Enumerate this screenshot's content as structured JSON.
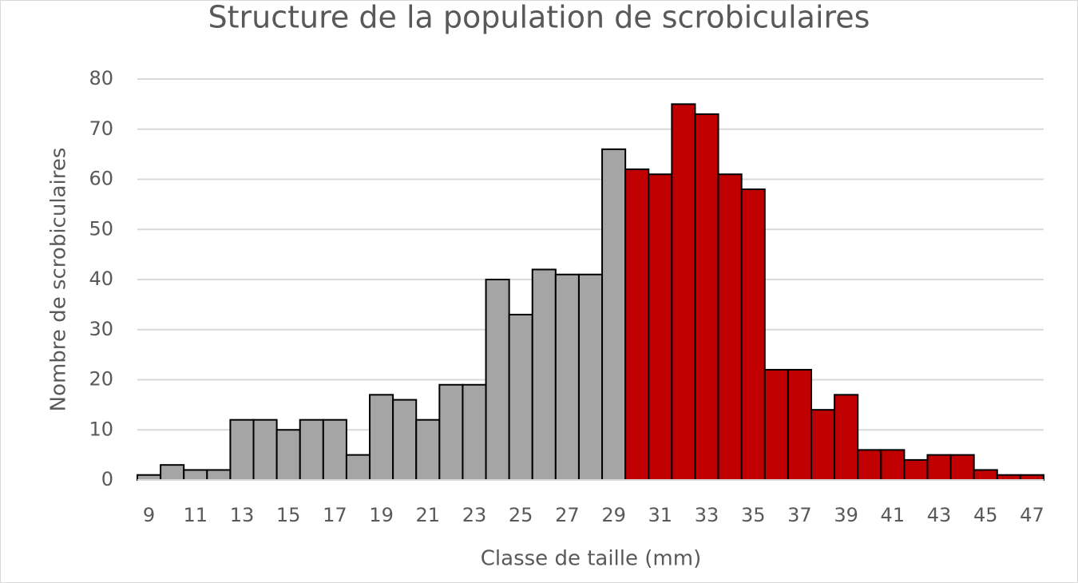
{
  "chart_data": {
    "type": "bar",
    "title": "Structure de la population de scrobiculaires",
    "x_label": "Classe de taille (mm)",
    "y_label": "Nombre de scrobiculaires",
    "categories": [
      9,
      null,
      11,
      null,
      13,
      null,
      15,
      null,
      17,
      null,
      19,
      null,
      21,
      null,
      23,
      null,
      25,
      null,
      27,
      null,
      29,
      null,
      31,
      null,
      33,
      null,
      35,
      null,
      37,
      null,
      39,
      null,
      41,
      null,
      43,
      null,
      45,
      null,
      47
    ],
    "values": [
      1,
      3,
      2,
      2,
      12,
      12,
      10,
      12,
      12,
      5,
      17,
      16,
      12,
      19,
      19,
      40,
      33,
      42,
      41,
      41,
      66,
      62,
      61,
      75,
      73,
      61,
      58,
      22,
      22,
      14,
      17,
      6,
      6,
      4,
      5,
      5,
      2,
      1,
      1
    ],
    "colors": [
      "#a5a5a5",
      "#a5a5a5",
      "#a5a5a5",
      "#a5a5a5",
      "#a5a5a5",
      "#a5a5a5",
      "#a5a5a5",
      "#a5a5a5",
      "#a5a5a5",
      "#a5a5a5",
      "#a5a5a5",
      "#a5a5a5",
      "#a5a5a5",
      "#a5a5a5",
      "#a5a5a5",
      "#a5a5a5",
      "#a5a5a5",
      "#a5a5a5",
      "#a5a5a5",
      "#a5a5a5",
      "#a5a5a5",
      "#c00000",
      "#c00000",
      "#c00000",
      "#c00000",
      "#c00000",
      "#c00000",
      "#c00000",
      "#c00000",
      "#c00000",
      "#c00000",
      "#c00000",
      "#c00000",
      "#c00000",
      "#c00000",
      "#c00000",
      "#c00000",
      "#c00000",
      "#c00000"
    ],
    "ylim": [
      0,
      80
    ],
    "yticks": [
      0,
      10,
      20,
      30,
      40,
      50,
      60,
      70,
      80
    ],
    "grid": true
  }
}
